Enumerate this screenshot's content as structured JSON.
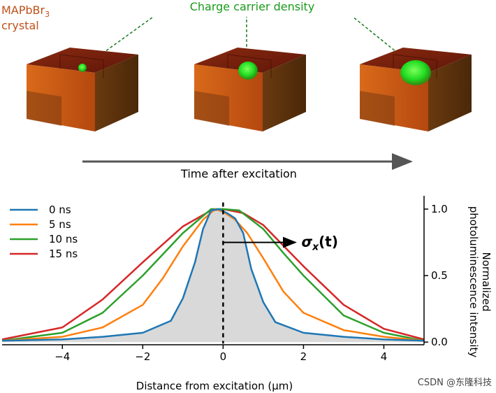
{
  "illustration": {
    "crystal_label_line1": "MAPbBr",
    "crystal_label_sub": "3",
    "crystal_label_line2": "crystal",
    "density_label": "Charge carrier density",
    "time_label": "Time after excitation",
    "colors": {
      "crystal_text": "#c0501a",
      "density_text": "#1a9a1a",
      "arrow": "#555555"
    }
  },
  "chart_data": {
    "type": "line",
    "title": "",
    "xlabel": "Distance from excitation (µm)",
    "ylabel_line1": "Normalized",
    "ylabel_line2": "photoluminescence intensity",
    "xlim": [
      -5.5,
      5
    ],
    "ylim": [
      -0.02,
      1.1
    ],
    "xticks": [
      -4,
      -2,
      0,
      2,
      4
    ],
    "xtick_labels": [
      "−4",
      "−2",
      "0",
      "2",
      "4"
    ],
    "yticks": [
      0.0,
      0.5,
      1.0
    ],
    "ytick_labels": [
      "0.0",
      "0.5",
      "1.0"
    ],
    "legend_position": "top-left",
    "annotation_sigma": "σ",
    "annotation_sub": "x",
    "annotation_rest": "(t)",
    "fill_under_series": "0 ns",
    "series": [
      {
        "name": "0 ns",
        "color": "#1f77b4",
        "x": [
          -5.5,
          -4,
          -3,
          -2,
          -1.3,
          -1,
          -0.7,
          -0.5,
          -0.3,
          -0.1,
          0.1,
          0.3,
          0.5,
          0.7,
          1.0,
          1.3,
          2,
          3,
          4,
          5
        ],
        "y": [
          0.01,
          0.02,
          0.04,
          0.07,
          0.16,
          0.33,
          0.6,
          0.85,
          0.99,
          1.0,
          0.97,
          0.93,
          0.82,
          0.55,
          0.3,
          0.15,
          0.07,
          0.04,
          0.02,
          0.01
        ]
      },
      {
        "name": "5 ns",
        "color": "#ff7f0e",
        "x": [
          -5.5,
          -4,
          -3,
          -2,
          -1.5,
          -1,
          -0.5,
          -0.2,
          0,
          0.3,
          0.6,
          1.0,
          1.5,
          2,
          3,
          4,
          5
        ],
        "y": [
          0.01,
          0.04,
          0.11,
          0.28,
          0.48,
          0.72,
          0.92,
          1.0,
          0.98,
          0.92,
          0.82,
          0.63,
          0.38,
          0.22,
          0.09,
          0.04,
          0.01
        ]
      },
      {
        "name": "10 ns",
        "color": "#2ca02c",
        "x": [
          -5.5,
          -4,
          -3,
          -2,
          -1,
          -0.3,
          0,
          0.4,
          1,
          1.5,
          2,
          3,
          4,
          5
        ],
        "y": [
          0.01,
          0.07,
          0.22,
          0.5,
          0.82,
          1.0,
          1.0,
          0.99,
          0.85,
          0.67,
          0.5,
          0.2,
          0.07,
          0.01
        ]
      },
      {
        "name": "15 ns",
        "color": "#d62728",
        "x": [
          -5.5,
          -4,
          -3,
          -2,
          -1,
          -0.3,
          0,
          0.5,
          1,
          2,
          3,
          4,
          5
        ],
        "y": [
          0.02,
          0.11,
          0.32,
          0.6,
          0.87,
          0.99,
          1.0,
          0.97,
          0.88,
          0.57,
          0.28,
          0.1,
          0.02
        ]
      }
    ]
  },
  "watermark": "CSDN @东隆科技"
}
